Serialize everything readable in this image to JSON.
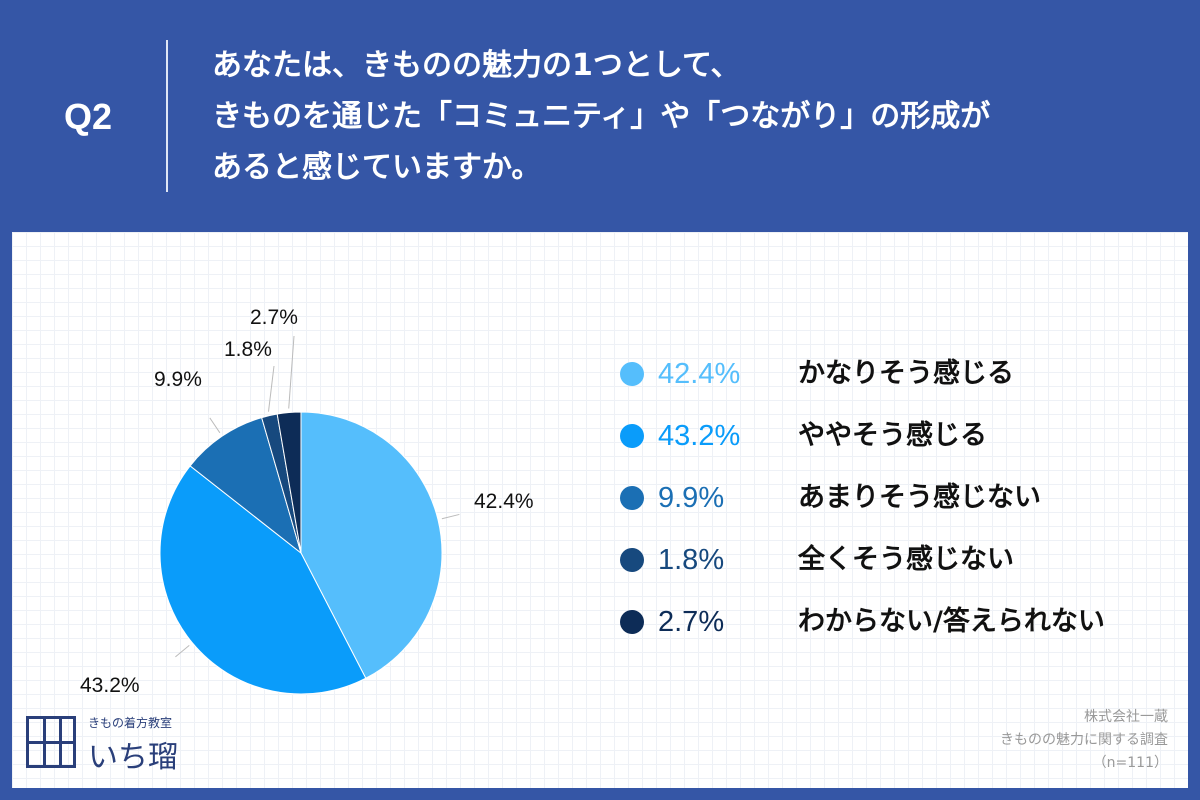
{
  "question": {
    "label": "Q2",
    "lines": [
      "あなたは、きものの魅力の1つとして、",
      "きものを通じた「コミュニティ」や「つながり」の形成が",
      "あると感じていますか。"
    ]
  },
  "chart_data": {
    "type": "pie",
    "slices": [
      {
        "label": "かなりそう感じる",
        "value": 42.4,
        "display": "42.4%",
        "color": "#55befc"
      },
      {
        "label": "ややそう感じる",
        "value": 43.2,
        "display": "43.2%",
        "color": "#0a9cfa"
      },
      {
        "label": "あまりそう感じない",
        "value": 9.9,
        "display": "9.9%",
        "color": "#1b6fb4"
      },
      {
        "label": "全くそう感じない",
        "value": 1.8,
        "display": "1.8%",
        "color": "#17497e"
      },
      {
        "label": "わからない/答えられない",
        "value": 2.7,
        "display": "2.7%",
        "color": "#0d2c57"
      }
    ],
    "start": "12 o'clock",
    "direction": "clockwise",
    "legend": "right"
  },
  "colors": {
    "background": "#3556a6",
    "panel": "#ffffff"
  },
  "logo": {
    "subtitle": "きもの着方教室",
    "name": "いち瑠"
  },
  "source": {
    "lines": [
      "株式会社一蔵",
      "きものの魅力に関する調査",
      "（n=111）"
    ]
  }
}
